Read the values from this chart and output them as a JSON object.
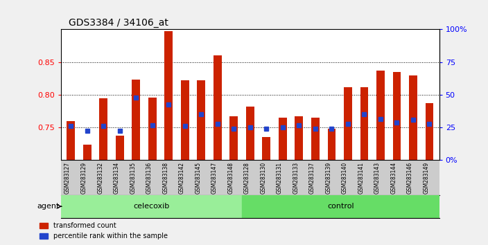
{
  "title": "GDS3384 / 34106_at",
  "samples": [
    "GSM283127",
    "GSM283129",
    "GSM283132",
    "GSM283134",
    "GSM283135",
    "GSM283136",
    "GSM283138",
    "GSM283142",
    "GSM283145",
    "GSM283147",
    "GSM283148",
    "GSM283128",
    "GSM283130",
    "GSM283131",
    "GSM283133",
    "GSM283137",
    "GSM283139",
    "GSM283140",
    "GSM283141",
    "GSM283143",
    "GSM283144",
    "GSM283146",
    "GSM283149"
  ],
  "transformed_count": [
    0.76,
    0.723,
    0.795,
    0.737,
    0.823,
    0.796,
    0.897,
    0.822,
    0.822,
    0.86,
    0.767,
    0.782,
    0.735,
    0.765,
    0.767,
    0.765,
    0.748,
    0.812,
    0.812,
    0.837,
    0.835,
    0.83,
    0.787
  ],
  "percentile_rank": [
    0.752,
    0.745,
    0.752,
    0.745,
    0.796,
    0.753,
    0.785,
    0.752,
    0.77,
    0.755,
    0.748,
    0.75,
    0.748,
    0.75,
    0.753,
    0.748,
    0.748,
    0.755,
    0.77,
    0.763,
    0.757,
    0.762,
    0.755
  ],
  "percentile_pct": [
    26,
    22,
    26,
    22,
    47,
    26,
    45,
    26,
    36,
    27,
    23,
    25,
    23,
    25,
    26,
    23,
    23,
    27,
    36,
    32,
    28,
    31,
    27
  ],
  "celecoxib_count": 11,
  "control_count": 12,
  "ylim_left": [
    0.7,
    0.9
  ],
  "ylim_right": [
    0,
    100
  ],
  "bar_color": "#cc2200",
  "marker_color": "#2244cc",
  "bar_width": 0.5,
  "background_plot": "#ffffff",
  "background_xtick": "#cccccc",
  "celecoxib_color": "#99ee99",
  "control_color": "#66dd66",
  "agent_label": "agent",
  "celecoxib_label": "celecoxib",
  "control_label": "control",
  "legend_red": "transformed count",
  "legend_blue": "percentile rank within the sample"
}
